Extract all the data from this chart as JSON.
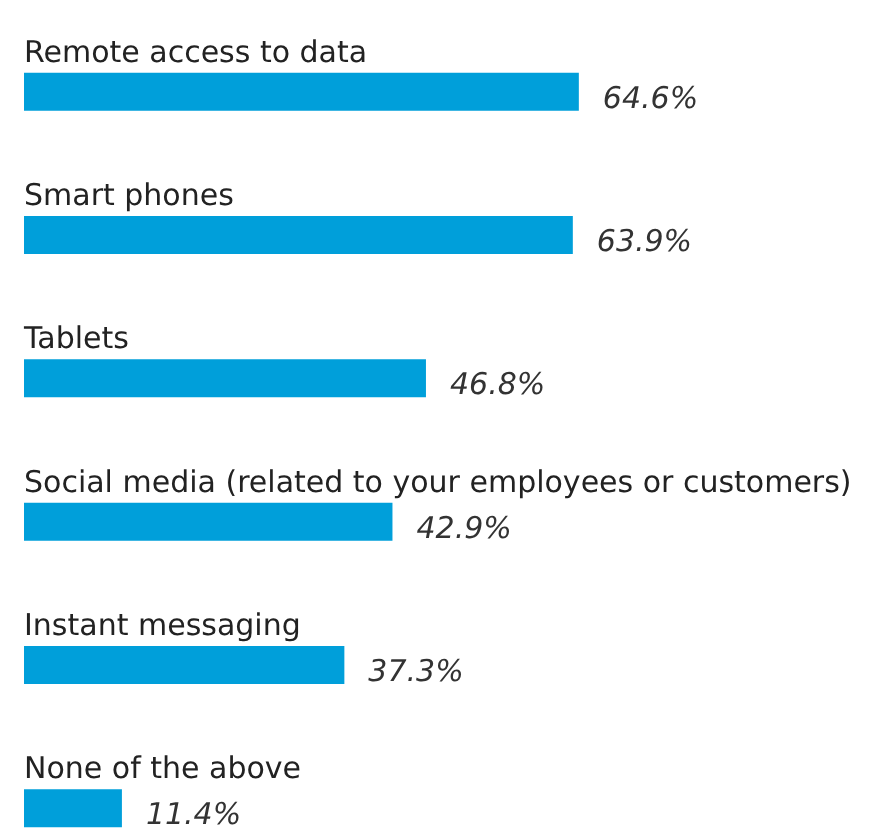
{
  "chart_data": {
    "type": "bar",
    "orientation": "horizontal",
    "categories": [
      "Remote access to data",
      "Smart phones",
      "Tablets",
      "Social media (related to your employees or customers)",
      "Instant messaging",
      "None of the above"
    ],
    "values": [
      64.6,
      63.9,
      46.8,
      42.9,
      37.3,
      11.4
    ],
    "value_labels": [
      "64.6%",
      "63.9%",
      "46.8%",
      "42.9%",
      "37.3%",
      "11.4%"
    ],
    "color": "#009fda",
    "grid": false
  }
}
